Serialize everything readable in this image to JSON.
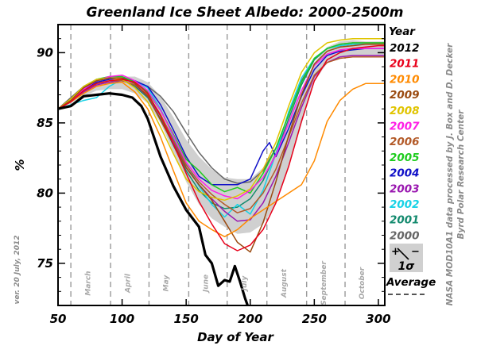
{
  "chart_data": {
    "type": "line",
    "title": "Greenland Ice Sheet Albedo: 2000-2500m",
    "xlabel": "Day of Year",
    "ylabel": "%",
    "xlim": [
      50,
      305
    ],
    "ylim": [
      72,
      92
    ],
    "x_ticks": [
      50,
      100,
      150,
      200,
      250,
      300
    ],
    "y_ticks": [
      75,
      80,
      85,
      90
    ],
    "month_boundaries": [
      60,
      91,
      121,
      152,
      182,
      213,
      244,
      274,
      305
    ],
    "months": [
      {
        "label": "March",
        "x": 75
      },
      {
        "label": "April",
        "x": 106
      },
      {
        "label": "May",
        "x": 136
      },
      {
        "label": "June",
        "x": 167
      },
      {
        "label": "July",
        "x": 197
      },
      {
        "label": "August",
        "x": 228
      },
      {
        "label": "September",
        "x": 259
      },
      {
        "label": "October",
        "x": 289
      }
    ],
    "legend_title": "Year",
    "legend_position": "right",
    "average_label": "Average",
    "sigma_label": "1σ",
    "side_text_1": "NASA MOD10A1 data processed by J. Box and D. Decker",
    "side_text_2": "Byrd Polar Research Center",
    "version_note": "ver. 20 July, 2012",
    "envelope": {
      "x": [
        50,
        60,
        70,
        80,
        90,
        100,
        110,
        120,
        130,
        140,
        150,
        160,
        170,
        180,
        190,
        200,
        210,
        220,
        230,
        240,
        250,
        260,
        270,
        280,
        290,
        300,
        305
      ],
      "upper": [
        86.0,
        86.6,
        87.4,
        88.0,
        88.2,
        88.3,
        88.3,
        87.9,
        86.9,
        85.4,
        83.8,
        82.6,
        81.7,
        81.1,
        81.0,
        81.0,
        81.8,
        83.3,
        85.3,
        87.4,
        89.3,
        90.4,
        90.8,
        90.9,
        90.8,
        90.8,
        90.8
      ],
      "lower": [
        86.0,
        86.4,
        86.9,
        87.3,
        87.4,
        87.4,
        87.1,
        86.4,
        85.0,
        82.9,
        80.8,
        79.2,
        78.2,
        77.6,
        77.1,
        77.2,
        77.8,
        79.2,
        81.8,
        84.9,
        87.9,
        89.3,
        89.7,
        89.7,
        89.7,
        89.7,
        89.7
      ]
    },
    "series": [
      {
        "name": "2012",
        "color": "#000000",
        "x": [
          50,
          60,
          70,
          80,
          90,
          100,
          108,
          115,
          120,
          130,
          140,
          150,
          160,
          165,
          170,
          175,
          180,
          184,
          188,
          192,
          196,
          198
        ],
        "y": [
          86.0,
          86.2,
          86.9,
          87.0,
          87.1,
          87.0,
          86.8,
          86.2,
          85.3,
          82.6,
          80.5,
          78.8,
          77.6,
          75.6,
          75.0,
          73.4,
          73.8,
          73.7,
          74.8,
          73.7,
          72.5,
          72.0
        ]
      },
      {
        "name": "2011",
        "color": "#e8001a",
        "x": [
          50,
          60,
          70,
          80,
          90,
          100,
          110,
          120,
          130,
          140,
          150,
          160,
          170,
          180,
          190,
          200,
          210,
          220,
          230,
          240,
          250,
          260,
          270,
          280,
          290,
          300,
          305
        ],
        "y": [
          86.0,
          86.5,
          87.3,
          87.8,
          88.0,
          88.1,
          87.9,
          87.1,
          85.5,
          83.5,
          81.4,
          79.4,
          77.8,
          76.4,
          75.9,
          76.3,
          77.4,
          79.3,
          81.9,
          85.1,
          88.0,
          89.5,
          90.0,
          90.3,
          90.4,
          90.5,
          90.5
        ]
      },
      {
        "name": "2010",
        "color": "#ff8a00",
        "x": [
          50,
          60,
          70,
          80,
          90,
          100,
          110,
          120,
          130,
          140,
          150,
          160,
          170,
          180,
          190,
          200,
          210,
          220,
          230,
          240,
          250,
          260,
          270,
          280,
          290,
          300,
          305
        ],
        "y": [
          86.0,
          86.5,
          87.1,
          87.6,
          87.8,
          87.9,
          87.2,
          86.0,
          84.0,
          81.6,
          79.3,
          78.0,
          77.4,
          76.9,
          77.4,
          78.2,
          78.8,
          79.4,
          80.0,
          80.6,
          82.3,
          85.1,
          86.6,
          87.4,
          87.8,
          87.8,
          87.8
        ]
      },
      {
        "name": "2009",
        "color": "#9a4a10",
        "x": [
          50,
          60,
          70,
          80,
          90,
          100,
          110,
          120,
          130,
          140,
          150,
          160,
          170,
          180,
          190,
          200,
          210,
          220,
          230,
          240,
          250,
          260,
          270,
          280,
          290,
          300,
          305
        ],
        "y": [
          86.0,
          86.6,
          87.5,
          88.0,
          88.2,
          88.2,
          87.8,
          86.9,
          85.2,
          83.5,
          81.8,
          80.6,
          79.5,
          78.0,
          76.5,
          75.8,
          77.9,
          80.8,
          84.1,
          87.0,
          89.2,
          90.1,
          90.4,
          90.5,
          90.6,
          90.6,
          90.6
        ]
      },
      {
        "name": "2008",
        "color": "#e0c400",
        "x": [
          50,
          60,
          70,
          80,
          90,
          100,
          110,
          120,
          130,
          140,
          150,
          160,
          170,
          180,
          190,
          200,
          210,
          220,
          230,
          240,
          250,
          260,
          270,
          280,
          290,
          300,
          305
        ],
        "y": [
          86.0,
          86.7,
          87.6,
          88.1,
          88.2,
          88.1,
          87.5,
          86.5,
          84.7,
          82.8,
          81.0,
          80.1,
          79.7,
          79.5,
          79.8,
          80.3,
          81.7,
          83.6,
          86.2,
          88.6,
          90.0,
          90.7,
          90.9,
          91.0,
          91.0,
          91.0,
          91.0
        ]
      },
      {
        "name": "2007",
        "color": "#ff1ee6",
        "x": [
          50,
          60,
          70,
          80,
          90,
          100,
          110,
          120,
          130,
          140,
          150,
          160,
          170,
          180,
          190,
          200,
          210,
          220,
          230,
          240,
          250,
          260,
          270,
          280,
          290,
          300,
          305
        ],
        "y": [
          86.0,
          86.6,
          87.4,
          88.0,
          88.3,
          88.4,
          88.0,
          87.3,
          85.9,
          84.1,
          82.2,
          81.0,
          80.2,
          79.8,
          79.6,
          80.2,
          81.1,
          82.7,
          85.0,
          87.3,
          89.1,
          89.9,
          90.2,
          90.3,
          90.3,
          90.3,
          90.3
        ]
      },
      {
        "name": "2006",
        "color": "#b35a28",
        "x": [
          50,
          60,
          70,
          80,
          90,
          100,
          110,
          120,
          130,
          140,
          150,
          160,
          170,
          180,
          190,
          200,
          210,
          220,
          230,
          240,
          250,
          260,
          270,
          280,
          290,
          300,
          305
        ],
        "y": [
          86.0,
          86.5,
          87.3,
          87.8,
          88.0,
          88.0,
          87.7,
          87.0,
          85.6,
          83.8,
          82.0,
          80.8,
          79.9,
          79.2,
          78.6,
          78.9,
          80.0,
          81.7,
          84.0,
          86.4,
          88.4,
          89.3,
          89.6,
          89.7,
          89.7,
          89.7,
          89.7
        ]
      },
      {
        "name": "2005",
        "color": "#1ecc1e",
        "x": [
          50,
          60,
          70,
          80,
          90,
          100,
          110,
          120,
          130,
          140,
          150,
          160,
          170,
          180,
          190,
          200,
          210,
          220,
          230,
          240,
          250,
          260,
          270,
          280,
          290,
          300,
          305
        ],
        "y": [
          86.0,
          86.6,
          87.5,
          88.1,
          88.3,
          88.3,
          87.9,
          87.2,
          85.9,
          84.2,
          82.4,
          81.6,
          80.6,
          80.1,
          80.4,
          80.0,
          81.4,
          83.2,
          85.6,
          87.9,
          89.6,
          90.3,
          90.6,
          90.7,
          90.7,
          90.7,
          90.7
        ]
      },
      {
        "name": "2004",
        "color": "#1010c8",
        "x": [
          50,
          60,
          70,
          80,
          90,
          100,
          110,
          120,
          130,
          140,
          150,
          160,
          170,
          180,
          190,
          200,
          210,
          215,
          220,
          230,
          240,
          250,
          260,
          270,
          280,
          290,
          300,
          305
        ],
        "y": [
          86.0,
          86.6,
          87.4,
          87.9,
          88.1,
          88.2,
          88.0,
          87.6,
          86.3,
          84.5,
          82.6,
          81.2,
          80.6,
          80.6,
          80.6,
          81.0,
          83.0,
          83.6,
          82.6,
          84.6,
          86.9,
          88.8,
          89.8,
          90.1,
          90.2,
          90.3,
          90.3,
          90.3
        ]
      },
      {
        "name": "2003",
        "color": "#9a18b0",
        "x": [
          50,
          60,
          70,
          80,
          90,
          100,
          110,
          120,
          130,
          140,
          150,
          160,
          170,
          180,
          190,
          200,
          210,
          220,
          230,
          240,
          250,
          260,
          270,
          280,
          290,
          300,
          305
        ],
        "y": [
          86.0,
          86.5,
          87.2,
          87.7,
          87.9,
          88.0,
          87.7,
          86.9,
          85.5,
          83.7,
          81.8,
          80.6,
          79.6,
          78.7,
          78.0,
          78.1,
          79.3,
          81.2,
          83.6,
          86.1,
          88.3,
          89.3,
          89.7,
          89.8,
          89.8,
          89.8,
          89.8
        ]
      },
      {
        "name": "2002",
        "color": "#18d2e6",
        "x": [
          50,
          60,
          70,
          80,
          90,
          100,
          110,
          120,
          130,
          140,
          150,
          160,
          170,
          180,
          190,
          200,
          210,
          220,
          230,
          240,
          250,
          260,
          270,
          280,
          290,
          300,
          305
        ],
        "y": [
          86.0,
          86.3,
          86.6,
          86.8,
          87.6,
          88.1,
          88.0,
          87.5,
          86.0,
          84.0,
          82.1,
          80.5,
          79.2,
          78.3,
          79.2,
          78.5,
          80.2,
          82.8,
          85.8,
          88.2,
          89.6,
          90.3,
          90.5,
          90.6,
          90.6,
          90.6,
          90.6
        ]
      },
      {
        "name": "2001",
        "color": "#138a6e",
        "x": [
          50,
          60,
          70,
          80,
          90,
          100,
          110,
          120,
          130,
          140,
          150,
          160,
          170,
          180,
          190,
          200,
          210,
          220,
          230,
          240,
          250,
          260,
          270,
          280,
          290,
          300,
          305
        ],
        "y": [
          86.0,
          86.6,
          87.5,
          88.0,
          88.2,
          88.1,
          87.6,
          86.8,
          85.3,
          83.4,
          81.6,
          80.2,
          79.3,
          78.9,
          79.0,
          79.6,
          80.9,
          82.8,
          85.3,
          87.7,
          89.5,
          90.3,
          90.5,
          90.6,
          90.6,
          90.6,
          90.6
        ]
      },
      {
        "name": "2000",
        "color": "#666666",
        "x": [
          50,
          60,
          70,
          80,
          90,
          100,
          110,
          120,
          130,
          140,
          150,
          160,
          170,
          180,
          190,
          200,
          210,
          220,
          230,
          240,
          250,
          260,
          270,
          280,
          290,
          300,
          305
        ],
        "y": [
          86.0,
          86.8,
          87.6,
          88.1,
          88.2,
          88.1,
          87.9,
          87.6,
          86.9,
          85.8,
          84.3,
          82.9,
          81.8,
          81.0,
          80.7,
          80.8,
          81.6,
          83.2,
          85.6,
          88.0,
          89.6,
          90.3,
          90.6,
          90.7,
          90.7,
          90.7,
          90.7
        ]
      }
    ]
  }
}
